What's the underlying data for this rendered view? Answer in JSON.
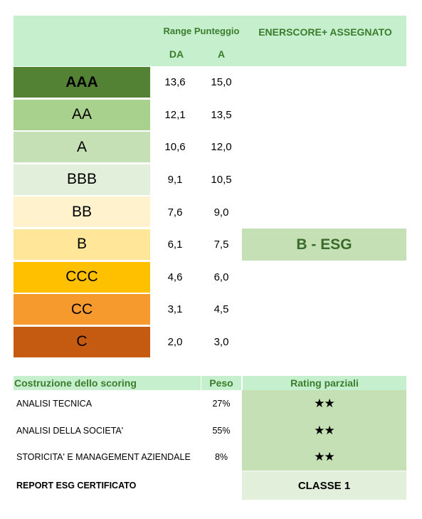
{
  "header": {
    "range_title": "Range Punteggio",
    "col_from": "DA",
    "col_to": "A",
    "assigned_title": "ENERSCORE+ ASSEGNATO"
  },
  "ratings": [
    {
      "grade": "AAA",
      "from": "13,6",
      "to": "15,0",
      "color": "#548235",
      "bold": true
    },
    {
      "grade": "AA",
      "from": "12,1",
      "to": "13,5",
      "color": "#a9d18e",
      "bold": false
    },
    {
      "grade": "A",
      "from": "10,6",
      "to": "12,0",
      "color": "#c5e0b4",
      "bold": false
    },
    {
      "grade": "BBB",
      "from": "9,1",
      "to": "10,5",
      "color": "#e2efda",
      "bold": false
    },
    {
      "grade": "BB",
      "from": "7,6",
      "to": "9,0",
      "color": "#fff2cc",
      "bold": false
    },
    {
      "grade": "B",
      "from": "6,1",
      "to": "7,5",
      "color": "#ffe699",
      "bold": false
    },
    {
      "grade": "CCC",
      "from": "4,6",
      "to": "6,0",
      "color": "#ffc000",
      "bold": false
    },
    {
      "grade": "CC",
      "from": "3,1",
      "to": "4,5",
      "color": "#f79a2e",
      "bold": false
    },
    {
      "grade": "C",
      "from": "2,0",
      "to": "3,0",
      "color": "#c55a11",
      "bold": false
    }
  ],
  "assigned": "B - ESG",
  "scoring": {
    "title": "Costruzione dello scoring",
    "peso_header": "Peso",
    "rating_header": "Rating parziali",
    "rows": [
      {
        "label": "ANALISI TECNICA",
        "peso": "27%",
        "stars": "★★"
      },
      {
        "label": "ANALISI DELLA SOCIETA'",
        "peso": "55%",
        "stars": "★★"
      },
      {
        "label": "STORICITA' E MANAGEMENT AZIENDALE",
        "peso": "8%",
        "stars": "★★"
      }
    ],
    "report_label": "REPORT ESG CERTIFICATO",
    "classe": "CLASSE 1"
  }
}
